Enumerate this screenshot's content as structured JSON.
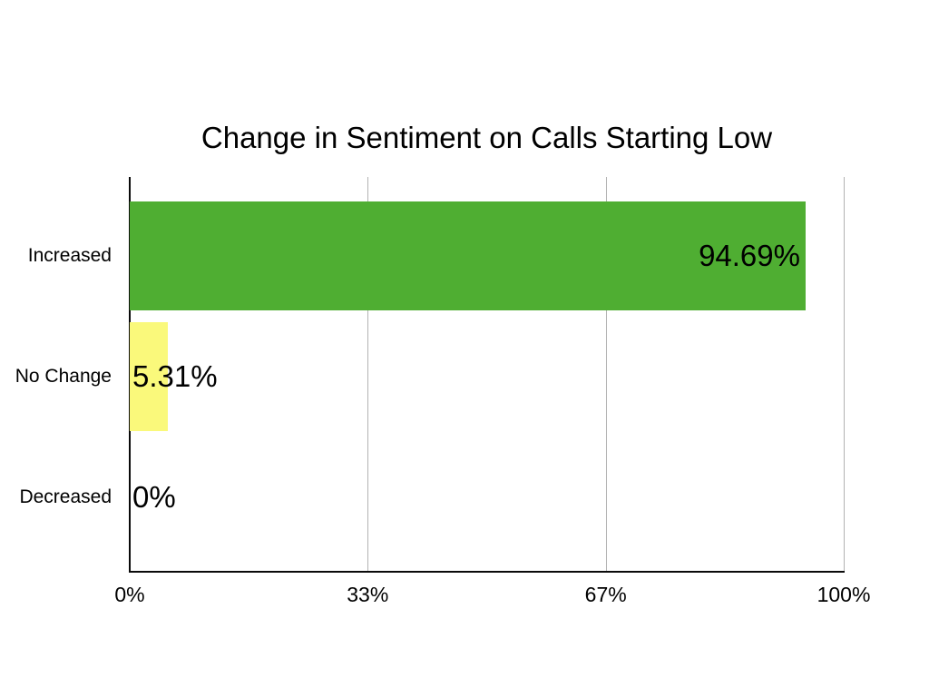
{
  "chart_data": {
    "type": "bar",
    "orientation": "horizontal",
    "title": "Change in Sentiment on Calls Starting Low",
    "categories": [
      "Increased",
      "No Change",
      "Decreased"
    ],
    "values": [
      94.69,
      5.31,
      0
    ],
    "value_labels": [
      "94.69%",
      "5.31%",
      "0%"
    ],
    "bar_colors": [
      "#4FAE32",
      "#FAF97B",
      "none"
    ],
    "x_ticks": [
      {
        "label": "0%",
        "value": 0
      },
      {
        "label": "33%",
        "value": 33.333
      },
      {
        "label": "67%",
        "value": 66.667
      },
      {
        "label": "100%",
        "value": 100
      }
    ],
    "xlim": [
      0,
      100
    ],
    "grid": true,
    "legend": false,
    "colors": {
      "grid": "#b3b3b3",
      "axis": "#0a0a0a",
      "text": "#000000",
      "background": "#ffffff"
    }
  }
}
